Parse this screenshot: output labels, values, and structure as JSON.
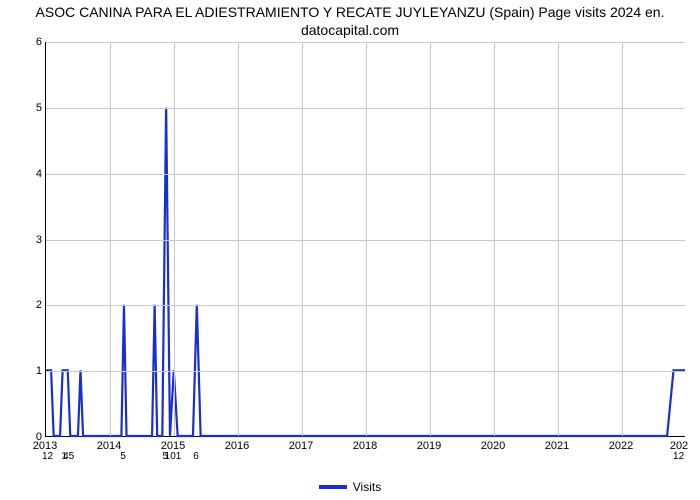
{
  "chart": {
    "type": "line",
    "title_line1": "ASOC CANINA PARA EL ADIESTRAMIENTO Y RECATE JUYLEYANZU (Spain) Page visits 2024 en.",
    "title_line2": "datocapital.com",
    "title_fontsize": 14,
    "background_color": "#ffffff",
    "grid_color": "#c8c8c8",
    "axis_color": "#000000",
    "line_color": "#1a2ecf",
    "line_width": 2.2,
    "x_axis": {
      "min": 2013.0,
      "max": 2023.0,
      "ticks": [
        2013,
        2014,
        2015,
        2016,
        2017,
        2018,
        2019,
        2020,
        2021,
        2022
      ],
      "end_label": "202",
      "fontsize": 11
    },
    "y_axis": {
      "min": 0,
      "max": 6,
      "ticks": [
        0,
        1,
        2,
        3,
        4,
        5,
        6
      ],
      "fontsize": 11
    },
    "legend": {
      "label": "Visits",
      "color": "#1a2ecf",
      "fontsize": 12
    },
    "data_points": [
      {
        "x": 2013.0,
        "y": 1
      },
      {
        "x": 2013.08,
        "y": 1
      },
      {
        "x": 2013.12,
        "y": 0
      },
      {
        "x": 2013.22,
        "y": 0
      },
      {
        "x": 2013.26,
        "y": 1
      },
      {
        "x": 2013.34,
        "y": 1
      },
      {
        "x": 2013.38,
        "y": 0
      },
      {
        "x": 2013.5,
        "y": 0
      },
      {
        "x": 2013.54,
        "y": 1
      },
      {
        "x": 2013.58,
        "y": 0
      },
      {
        "x": 2014.18,
        "y": 0
      },
      {
        "x": 2014.22,
        "y": 2
      },
      {
        "x": 2014.26,
        "y": 0
      },
      {
        "x": 2014.66,
        "y": 0
      },
      {
        "x": 2014.7,
        "y": 2
      },
      {
        "x": 2014.74,
        "y": 0
      },
      {
        "x": 2014.82,
        "y": 0
      },
      {
        "x": 2014.88,
        "y": 5
      },
      {
        "x": 2014.94,
        "y": 0
      },
      {
        "x": 2015.0,
        "y": 1
      },
      {
        "x": 2015.06,
        "y": 0
      },
      {
        "x": 2015.3,
        "y": 0
      },
      {
        "x": 2015.36,
        "y": 2
      },
      {
        "x": 2015.42,
        "y": 0
      },
      {
        "x": 2022.72,
        "y": 0
      },
      {
        "x": 2022.82,
        "y": 1
      },
      {
        "x": 2022.92,
        "y": 1
      },
      {
        "x": 2023.0,
        "y": 1
      }
    ],
    "data_labels": [
      {
        "x": 2013.04,
        "y": 1,
        "text": "12"
      },
      {
        "x": 2013.3,
        "y": 1,
        "text": "1"
      },
      {
        "x": 2013.37,
        "y": 1,
        "text": "45"
      },
      {
        "x": 2013.56,
        "y": 0,
        "text": ""
      },
      {
        "x": 2014.22,
        "y": 2,
        "text": "5"
      },
      {
        "x": 2014.88,
        "y": 5,
        "text": "5"
      },
      {
        "x": 2015.0,
        "y": 1,
        "text": "101"
      },
      {
        "x": 2015.36,
        "y": 2,
        "text": "6"
      },
      {
        "x": 2022.9,
        "y": 1,
        "text": "12"
      }
    ],
    "datalabel_fontsize": 10
  }
}
